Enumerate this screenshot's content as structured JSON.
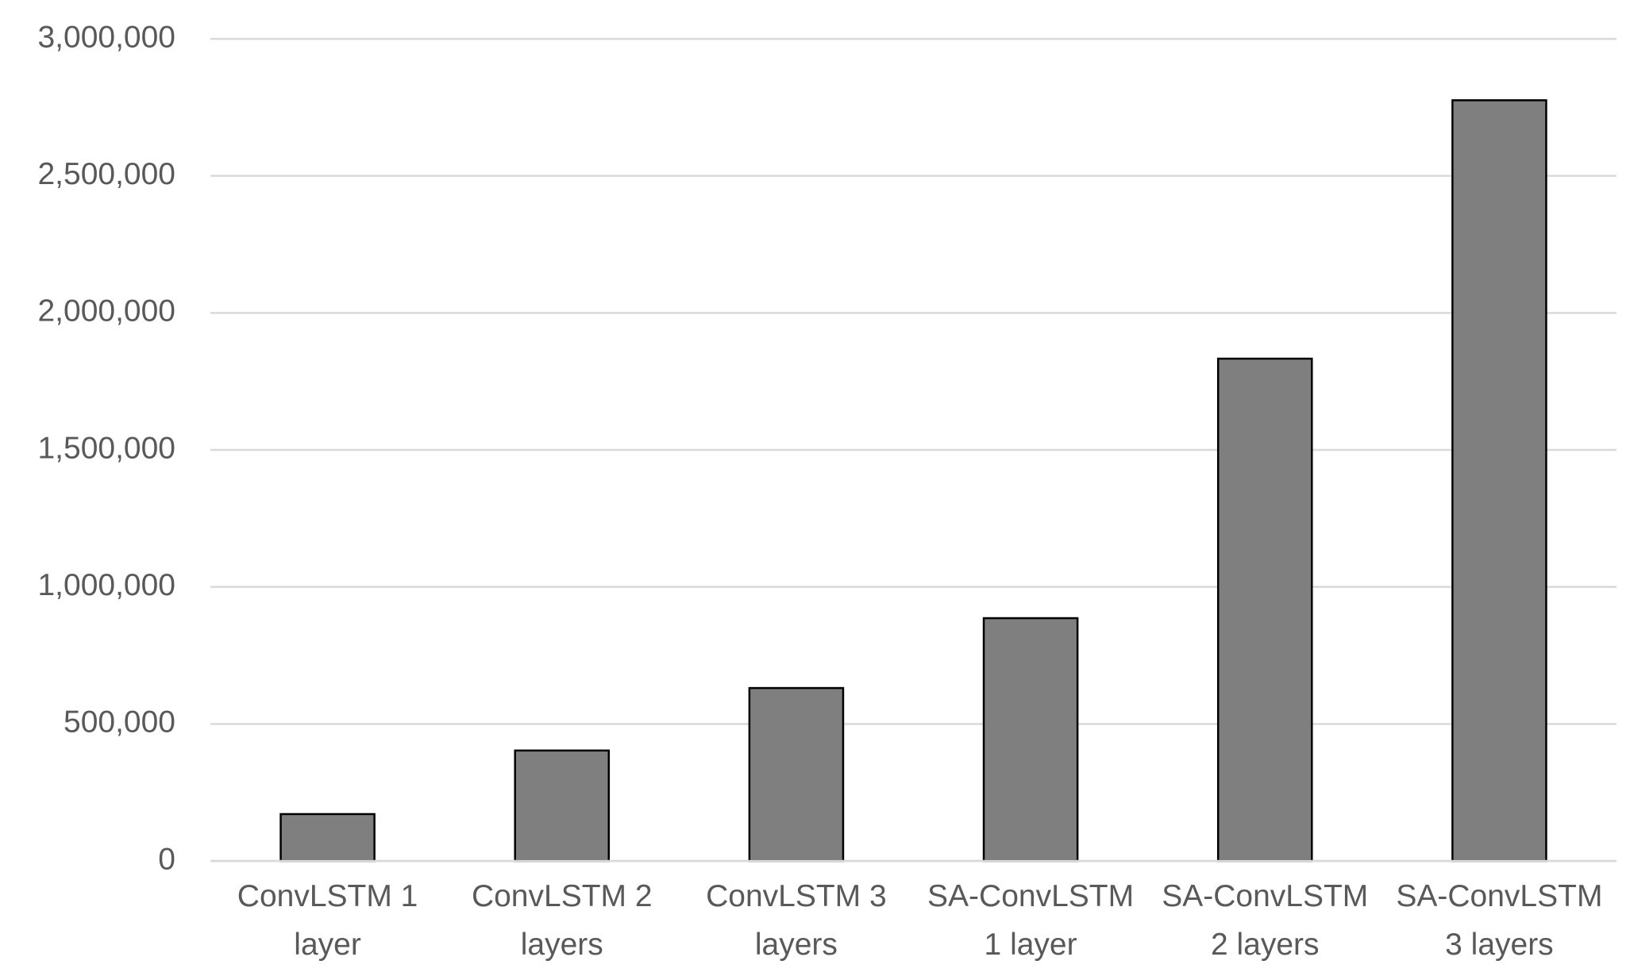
{
  "chart_data": {
    "type": "bar",
    "categories": [
      "ConvLSTM 1 layer",
      "ConvLSTM 2 layers",
      "ConvLSTM 3 layers",
      "SA-ConvLSTM 1 layer",
      "SA-ConvLSTM 2 layers",
      "SA-ConvLSTM 3 layers"
    ],
    "values": [
      171000,
      403000,
      631000,
      886000,
      1833000,
      2776000
    ],
    "color": "#7f7f7f",
    "ylim": [
      0,
      3000000
    ],
    "yticks": [
      0,
      {
        "value": 500000,
        "label": "500,000"
      },
      {
        "value": 1000000,
        "label": "1,000,000"
      },
      {
        "value": 1500000,
        "label": "1,500,000"
      },
      {
        "value": 2000000,
        "label": "2,000,000"
      },
      {
        "value": 2500000,
        "label": "2,500,000"
      },
      {
        "value": 3000000,
        "label": "3,000,000"
      }
    ],
    "grid": true
  }
}
